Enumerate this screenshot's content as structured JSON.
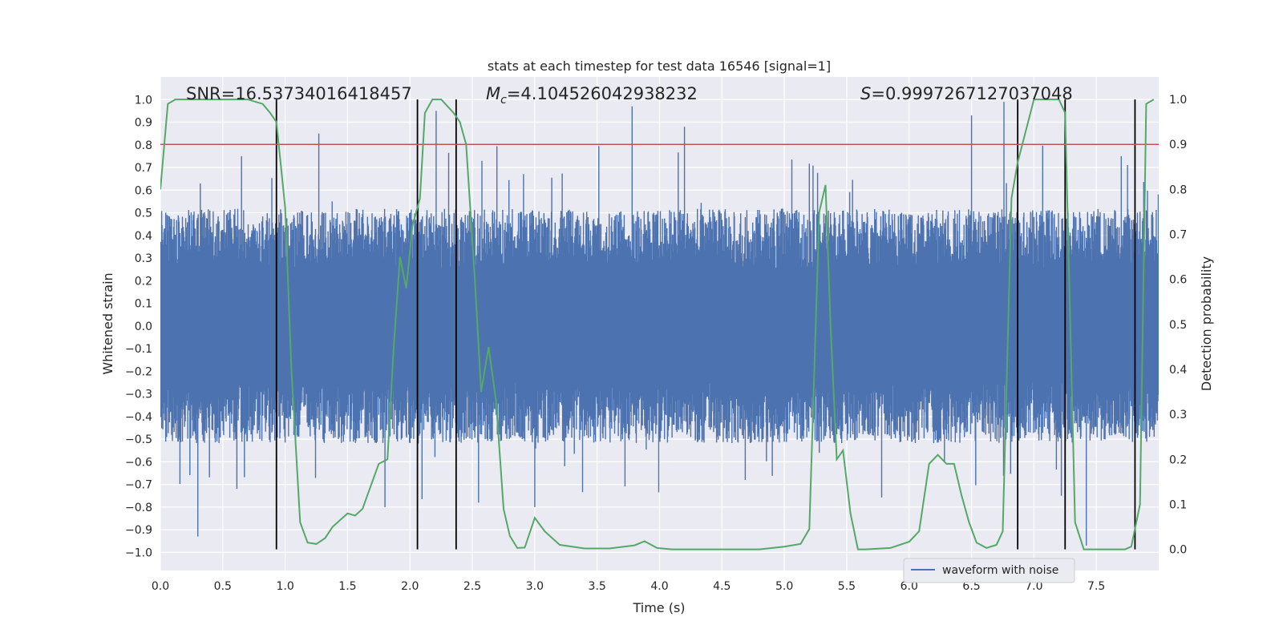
{
  "chart_data": {
    "type": "line",
    "title": "stats at each timestep for test data 16546 [signal=1]",
    "xlabel": "Time (s)",
    "ylabel": "Whitened strain",
    "y2label": "Detection probability",
    "xlim": [
      0,
      8
    ],
    "ylim": [
      -1.08,
      1.1
    ],
    "y2lim": [
      -0.047,
      1.05
    ],
    "xticks": [
      0.0,
      0.5,
      1.0,
      1.5,
      2.0,
      2.5,
      3.0,
      3.5,
      4.0,
      4.5,
      5.0,
      5.5,
      6.0,
      6.5,
      7.0,
      7.5
    ],
    "yticks": [
      1.0,
      0.9,
      0.8,
      0.7,
      0.6,
      0.5,
      0.4,
      0.3,
      0.2,
      0.1,
      0.0,
      -0.1,
      -0.2,
      -0.3,
      -0.4,
      -0.5,
      -0.6,
      -0.7,
      -0.8,
      -0.9,
      -1.0
    ],
    "y2ticks": [
      1.0,
      0.9,
      0.8,
      0.7,
      0.6,
      0.5,
      0.4,
      0.3,
      0.2,
      0.1,
      0.0
    ],
    "annotations": {
      "snr": "SNR=16.53734016418457",
      "mc": "=4.104526042938232",
      "mc_symbol": "M",
      "mc_sub": "c",
      "s": "=0.9997267127037048",
      "s_symbol": "S"
    },
    "threshold": {
      "y2": 0.9,
      "color": "#c44e52"
    },
    "event_lines_x": [
      0.93,
      2.06,
      2.37,
      6.87,
      7.25,
      7.81
    ],
    "waveform": {
      "name": "waveform with noise",
      "color": "#4c72b0",
      "typical_envelope": [
        -0.45,
        0.45
      ],
      "peaks": [
        {
          "x": 0.3,
          "y": -0.93
        },
        {
          "x": 0.65,
          "y": 0.75
        },
        {
          "x": 1.27,
          "y": 0.85
        },
        {
          "x": 1.8,
          "y": -0.8
        },
        {
          "x": 2.21,
          "y": 0.95
        },
        {
          "x": 2.55,
          "y": -0.78
        },
        {
          "x": 3.78,
          "y": 0.97
        },
        {
          "x": 3.0,
          "y": -0.8
        },
        {
          "x": 4.2,
          "y": 0.88
        },
        {
          "x": 6.5,
          "y": 0.93
        },
        {
          "x": 6.76,
          "y": 0.99
        },
        {
          "x": 7.22,
          "y": -0.75
        },
        {
          "x": 7.42,
          "y": -0.97
        },
        {
          "x": 7.7,
          "y": 0.75
        }
      ]
    },
    "probability": {
      "color": "#55a868",
      "x": [
        0.0,
        0.06,
        0.12,
        0.3,
        0.5,
        0.7,
        0.82,
        0.88,
        0.93,
        1.0,
        1.05,
        1.12,
        1.18,
        1.25,
        1.32,
        1.38,
        1.5,
        1.56,
        1.62,
        1.75,
        1.82,
        1.87,
        1.92,
        1.97,
        2.02,
        2.08,
        2.12,
        2.18,
        2.25,
        2.35,
        2.4,
        2.45,
        2.52,
        2.57,
        2.63,
        2.69,
        2.75,
        2.8,
        2.86,
        2.92,
        3.0,
        3.08,
        3.2,
        3.4,
        3.6,
        3.8,
        3.88,
        3.98,
        4.1,
        4.4,
        4.8,
        5.0,
        5.13,
        5.2,
        5.28,
        5.33,
        5.37,
        5.42,
        5.47,
        5.53,
        5.59,
        5.65,
        5.85,
        6.0,
        6.08,
        6.16,
        6.23,
        6.3,
        6.36,
        6.42,
        6.48,
        6.54,
        6.62,
        6.7,
        6.75,
        6.82,
        6.87,
        7.0,
        7.1,
        7.2,
        7.25,
        7.33,
        7.4,
        7.48,
        7.6,
        7.73,
        7.78,
        7.85,
        7.9,
        7.96
      ],
      "y": [
        0.8,
        0.99,
        1.0,
        1.0,
        1.0,
        1.0,
        0.99,
        0.97,
        0.95,
        0.76,
        0.4,
        0.06,
        0.015,
        0.012,
        0.025,
        0.05,
        0.08,
        0.075,
        0.09,
        0.19,
        0.2,
        0.45,
        0.65,
        0.58,
        0.72,
        0.78,
        0.97,
        1.0,
        1.0,
        0.97,
        0.95,
        0.9,
        0.6,
        0.35,
        0.45,
        0.33,
        0.09,
        0.03,
        0.003,
        0.004,
        0.07,
        0.04,
        0.01,
        0.002,
        0.002,
        0.009,
        0.018,
        0.003,
        0.0,
        0.0,
        0.0,
        0.006,
        0.012,
        0.045,
        0.75,
        0.81,
        0.5,
        0.2,
        0.22,
        0.08,
        0.0,
        0.0,
        0.003,
        0.017,
        0.04,
        0.19,
        0.21,
        0.19,
        0.19,
        0.12,
        0.06,
        0.015,
        0.003,
        0.01,
        0.04,
        0.78,
        0.86,
        1.0,
        1.0,
        1.0,
        0.97,
        0.06,
        0.0,
        0.0,
        0.0,
        0.0,
        0.006,
        0.1,
        0.99,
        1.0
      ]
    },
    "legend": {
      "placement": "lower-right",
      "entries": [
        "waveform with noise"
      ]
    },
    "grid": true
  }
}
